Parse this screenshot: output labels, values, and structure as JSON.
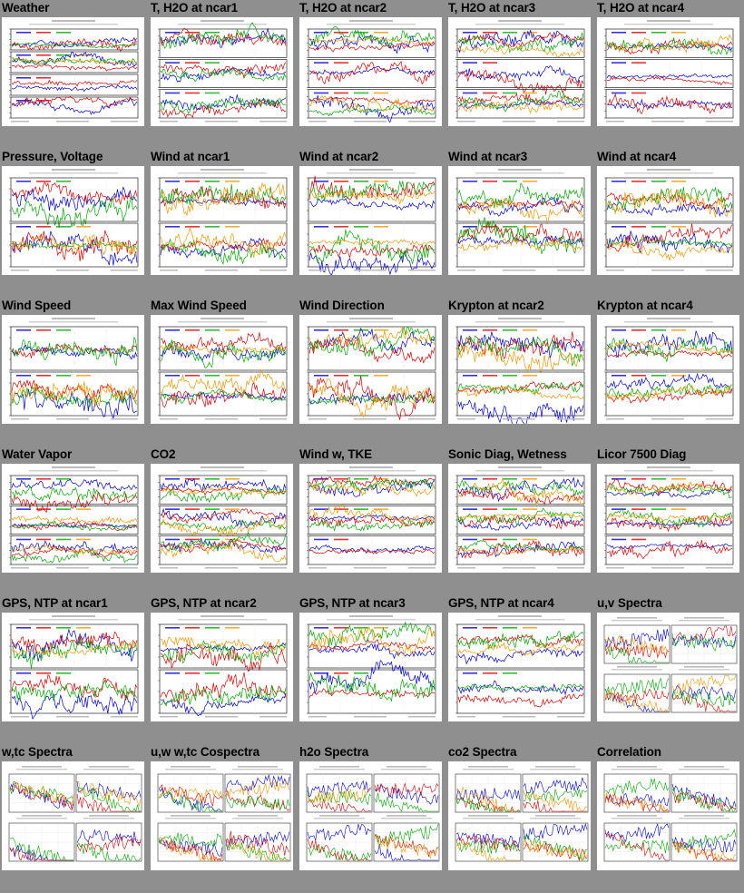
{
  "grid": {
    "rows": [
      [
        "Weather",
        "T, H2O at ncar1",
        "T, H2O at ncar2",
        "T, H2O at ncar3",
        "T, H2O at ncar4"
      ],
      [
        "Pressure, Voltage",
        "Wind at ncar1",
        "Wind at ncar2",
        "Wind at ncar3",
        "Wind at ncar4"
      ],
      [
        "Wind Speed",
        "Max Wind Speed",
        "Wind Direction",
        "Krypton at ncar2",
        "Krypton at ncar4"
      ],
      [
        "Water Vapor",
        "CO2",
        "Wind w, TKE",
        "Sonic Diag, Wetness",
        "Licor 7500 Diag"
      ],
      [
        "GPS, NTP at ncar1",
        "GPS, NTP at ncar2",
        "GPS, NTP at ncar3",
        "GPS, NTP at ncar4",
        "u,v Spectra"
      ],
      [
        "w,tc Spectra",
        "u,w w,tc Cospectra",
        "h2o Spectra",
        "co2 Spectra",
        "Correlation"
      ]
    ],
    "kinds": [
      [
        "ts4",
        "ts3",
        "ts3",
        "ts3",
        "ts3"
      ],
      [
        "ts2",
        "ts2",
        "ts2",
        "ts2",
        "ts2"
      ],
      [
        "ts2",
        "ts2",
        "ts2",
        "ts2",
        "ts2"
      ],
      [
        "ts3",
        "ts3",
        "ts3",
        "ts3",
        "ts3"
      ],
      [
        "ts2",
        "ts2",
        "ts2",
        "ts2",
        "spec4"
      ],
      [
        "spec4",
        "spec4",
        "spec4",
        "spec4",
        "spec4"
      ]
    ]
  },
  "colors": {
    "background": "#8f8f8f",
    "panel": "#ffffff",
    "series": [
      "#0000dd",
      "#dd0000",
      "#00aa00",
      "#ee9900",
      "#000000"
    ]
  }
}
